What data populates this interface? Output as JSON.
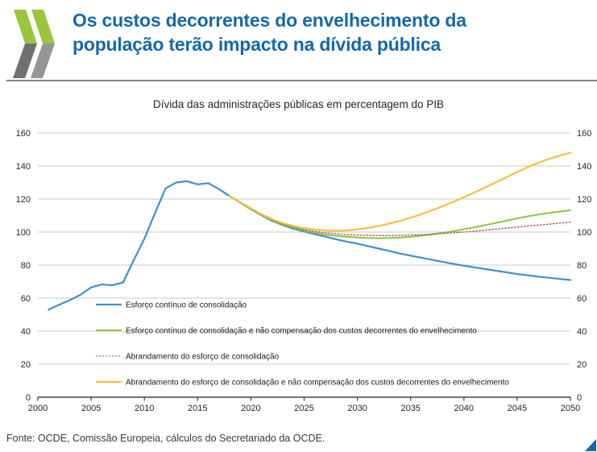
{
  "header": {
    "title_line1": "Os custos decorrentes do envelhecimento da",
    "title_line2": "população terão impacto na dívida pública"
  },
  "footer": {
    "source": "Fonte: OCDE, Comissão Europeia, cálculos do Secretariado da OCDE."
  },
  "colors": {
    "title_blue": "#1469aa",
    "logo_green": "#9bc53d",
    "logo_gray_dark": "#6f7072",
    "logo_gray_light": "#939598",
    "gridline": "#c9c9c9",
    "axis": "#404040",
    "corner_triangle": "#1469aa"
  },
  "chart_data": {
    "type": "line",
    "title": "Dívida das administrações públicas em percentagem do PIB",
    "xlabel": "",
    "ylabel": "",
    "xlim": [
      2000,
      2050
    ],
    "ylim": [
      0,
      160
    ],
    "grid": true,
    "legend_position": "inside-bottom-left",
    "yticks": [
      0,
      20,
      40,
      60,
      80,
      100,
      120,
      140,
      160
    ],
    "xticks": [
      2000,
      2005,
      2010,
      2015,
      2020,
      2025,
      2030,
      2035,
      2040,
      2045,
      2050
    ],
    "series": [
      {
        "id": "esforco-continuo",
        "name": "Esforço contínuo de consolidação",
        "color": "#3e92cc",
        "width": 2.2,
        "dash": "",
        "points": [
          [
            2001,
            53
          ],
          [
            2002,
            56
          ],
          [
            2003,
            58.8
          ],
          [
            2004,
            62
          ],
          [
            2005,
            66.5
          ],
          [
            2006,
            68.3
          ],
          [
            2007,
            67.8
          ],
          [
            2008,
            69.5
          ],
          [
            2009,
            83
          ],
          [
            2010,
            96
          ],
          [
            2011,
            111.5
          ],
          [
            2012,
            126.5
          ],
          [
            2013,
            130
          ],
          [
            2014,
            130.8
          ],
          [
            2015,
            128.9
          ],
          [
            2016,
            129.6
          ],
          [
            2017,
            126
          ],
          [
            2018,
            121.8
          ],
          [
            2019,
            117.8
          ],
          [
            2020,
            113.8
          ],
          [
            2021,
            110.2
          ],
          [
            2022,
            106.8
          ],
          [
            2023,
            104.2
          ],
          [
            2024,
            102
          ],
          [
            2025,
            100.3
          ],
          [
            2026,
            98.7
          ],
          [
            2027,
            97.2
          ],
          [
            2028,
            95.6
          ],
          [
            2029,
            94.2
          ],
          [
            2030,
            93
          ],
          [
            2031,
            91.5
          ],
          [
            2032,
            90
          ],
          [
            2033,
            88.5
          ],
          [
            2034,
            87
          ],
          [
            2035,
            85.7
          ],
          [
            2036,
            84.5
          ],
          [
            2037,
            83.2
          ],
          [
            2038,
            82
          ],
          [
            2039,
            80.8
          ],
          [
            2040,
            79.6
          ],
          [
            2041,
            78.6
          ],
          [
            2042,
            77.6
          ],
          [
            2043,
            76.6
          ],
          [
            2044,
            75.6
          ],
          [
            2045,
            74.6
          ],
          [
            2046,
            73.8
          ],
          [
            2047,
            73
          ],
          [
            2048,
            72.3
          ],
          [
            2049,
            71.6
          ],
          [
            2050,
            71
          ]
        ]
      },
      {
        "id": "esforco-continuo-nao-compensacao",
        "name": "Esforço contínuo de consolidação e não compensação dos custos decorrentes do envelhecimento",
        "color": "#8fc33e",
        "width": 2,
        "dash": "",
        "points": [
          [
            2018,
            121.8
          ],
          [
            2019,
            117.9
          ],
          [
            2020,
            114
          ],
          [
            2021,
            110.4
          ],
          [
            2022,
            107.1
          ],
          [
            2023,
            104.6
          ],
          [
            2024,
            102.6
          ],
          [
            2025,
            101
          ],
          [
            2026,
            99.6
          ],
          [
            2027,
            98.5
          ],
          [
            2028,
            97.7
          ],
          [
            2029,
            97.1
          ],
          [
            2030,
            96.7
          ],
          [
            2031,
            96.4
          ],
          [
            2032,
            96.3
          ],
          [
            2033,
            96.4
          ],
          [
            2034,
            96.7
          ],
          [
            2035,
            97.1
          ],
          [
            2036,
            97.8
          ],
          [
            2037,
            98.6
          ],
          [
            2038,
            99.5
          ],
          [
            2039,
            100.5
          ],
          [
            2040,
            101.7
          ],
          [
            2041,
            102.9
          ],
          [
            2042,
            104.2
          ],
          [
            2043,
            105.5
          ],
          [
            2044,
            106.9
          ],
          [
            2045,
            108.3
          ],
          [
            2046,
            109.5
          ],
          [
            2047,
            110.6
          ],
          [
            2048,
            111.6
          ],
          [
            2049,
            112.4
          ],
          [
            2050,
            113.2
          ]
        ]
      },
      {
        "id": "abrandamento",
        "name": "Abrandamento do esforço de consolidação",
        "color": "#a85252",
        "width": 1.3,
        "dash": "1.6 2.4",
        "points": [
          [
            2018,
            121.8
          ],
          [
            2019,
            117.9
          ],
          [
            2020,
            114
          ],
          [
            2021,
            110.5
          ],
          [
            2022,
            107.3
          ],
          [
            2023,
            104.9
          ],
          [
            2024,
            103
          ],
          [
            2025,
            101.5
          ],
          [
            2026,
            100.4
          ],
          [
            2027,
            99.5
          ],
          [
            2028,
            98.9
          ],
          [
            2029,
            98.4
          ],
          [
            2030,
            98.1
          ],
          [
            2031,
            98
          ],
          [
            2032,
            97.9
          ],
          [
            2033,
            97.9
          ],
          [
            2034,
            98
          ],
          [
            2035,
            98.2
          ],
          [
            2036,
            98.4
          ],
          [
            2037,
            98.7
          ],
          [
            2038,
            99.1
          ],
          [
            2039,
            99.5
          ],
          [
            2040,
            100
          ],
          [
            2041,
            100.5
          ],
          [
            2042,
            101.1
          ],
          [
            2043,
            101.7
          ],
          [
            2044,
            102.4
          ],
          [
            2045,
            103
          ],
          [
            2046,
            103.6
          ],
          [
            2047,
            104.2
          ],
          [
            2048,
            104.8
          ],
          [
            2049,
            105.4
          ],
          [
            2050,
            106
          ]
        ]
      },
      {
        "id": "abrandamento-nao-compensacao",
        "name": "Abrandamento do esforço de consolidação e não compensação dos custos decorrentes do envelhecimento",
        "color": "#f6c142",
        "width": 2.2,
        "dash": "",
        "points": [
          [
            2018,
            121.9
          ],
          [
            2019,
            118.1
          ],
          [
            2020,
            114.3
          ],
          [
            2021,
            110.9
          ],
          [
            2022,
            107.8
          ],
          [
            2023,
            105.4
          ],
          [
            2024,
            103.6
          ],
          [
            2025,
            102.4
          ],
          [
            2026,
            101.5
          ],
          [
            2027,
            101
          ],
          [
            2028,
            100.8
          ],
          [
            2029,
            101
          ],
          [
            2030,
            101.6
          ],
          [
            2031,
            102.5
          ],
          [
            2032,
            103.7
          ],
          [
            2033,
            105.1
          ],
          [
            2034,
            106.8
          ],
          [
            2035,
            108.7
          ],
          [
            2036,
            110.8
          ],
          [
            2037,
            113.1
          ],
          [
            2038,
            115.6
          ],
          [
            2039,
            118.3
          ],
          [
            2040,
            121.1
          ],
          [
            2041,
            124
          ],
          [
            2042,
            127
          ],
          [
            2043,
            130.1
          ],
          [
            2044,
            133.2
          ],
          [
            2045,
            136.3
          ],
          [
            2046,
            139.3
          ],
          [
            2047,
            142
          ],
          [
            2048,
            144.3
          ],
          [
            2049,
            146.3
          ],
          [
            2050,
            148
          ]
        ]
      }
    ]
  }
}
